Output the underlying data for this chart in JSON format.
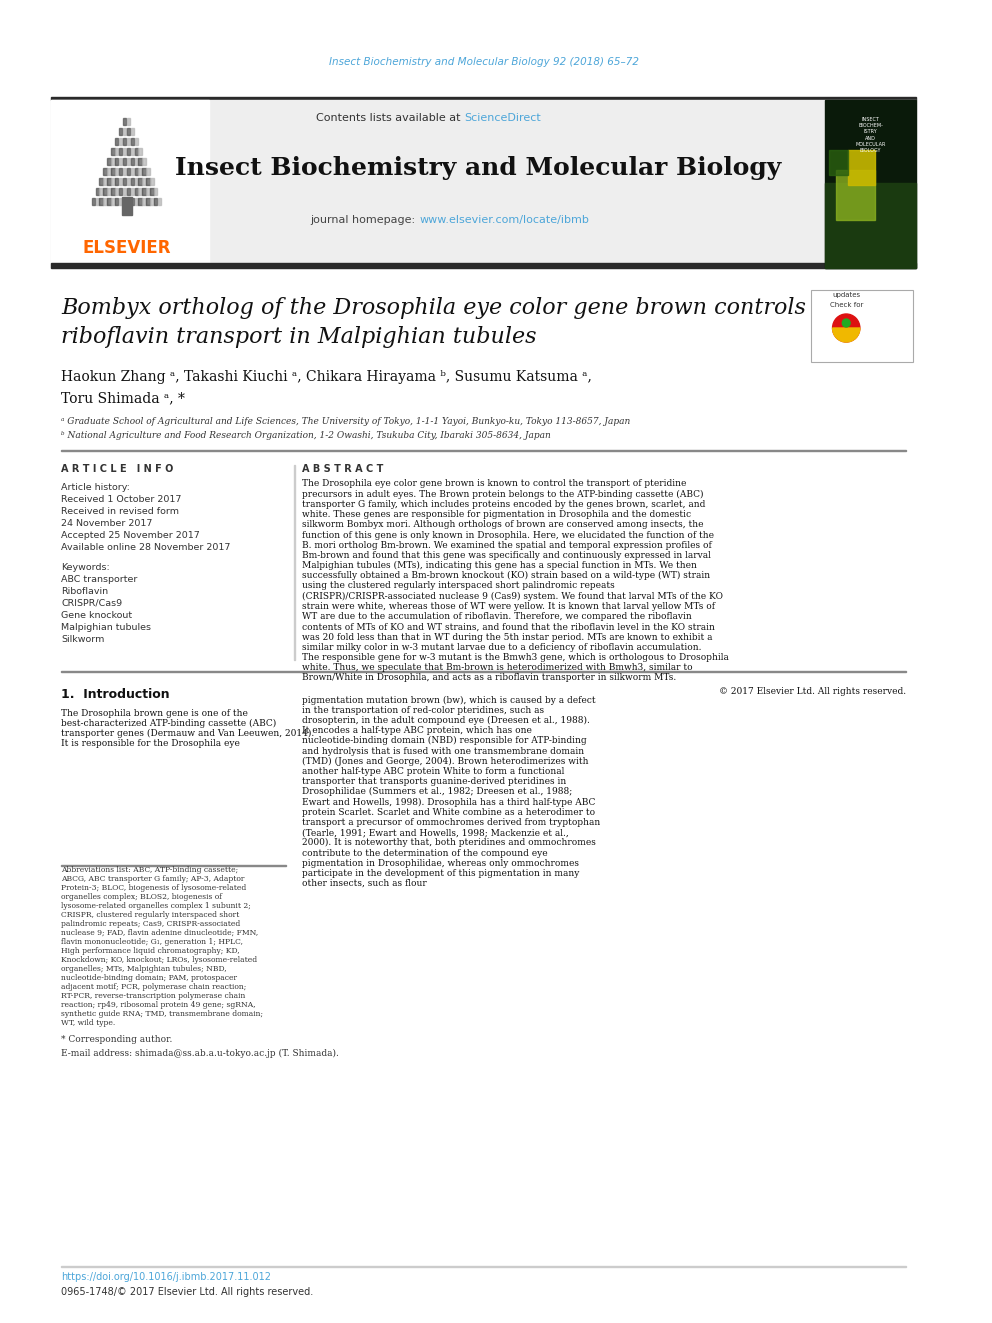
{
  "page_title_line": "Insect Biochemistry and Molecular Biology 92 (2018) 65–72",
  "journal_name": "Insect Biochemistry and Molecular Biology",
  "contents_line": "Contents lists available at ScienceDirect",
  "elsevier_text": "ELSEVIER",
  "paper_title_line1": "Bombyx ortholog of the Drosophila eye color gene brown controls",
  "paper_title_line2": "riboflavin transport in Malpighian tubules",
  "authors": "Haokun Zhang ᵃ, Takashi Kiuchi ᵃ, Chikara Hirayama ᵇ, Susumu Katsuma ᵃ,",
  "authors2": "Toru Shimada ᵃ, *",
  "affil_a": "ᵃ Graduate School of Agricultural and Life Sciences, The University of Tokyo, 1-1-1 Yayoi, Bunkyo-ku, Tokyo 113-8657, Japan",
  "affil_b": "ᵇ National Agriculture and Food Research Organization, 1-2 Owashi, Tsukuba City, Ibaraki 305-8634, Japan",
  "article_info_header": "A R T I C L E   I N F O",
  "article_history_header": "Article history:",
  "received": "Received 1 October 2017",
  "received_revised": "Received in revised form",
  "received_revised2": "24 November 2017",
  "accepted": "Accepted 25 November 2017",
  "available": "Available online 28 November 2017",
  "keywords_header": "Keywords:",
  "keywords": [
    "ABC transporter",
    "Riboflavin",
    "CRISPR/Cas9",
    "Gene knockout",
    "Malpighian tubules",
    "Silkworm"
  ],
  "abstract_header": "A B S T R A C T",
  "abstract_text": "The Drosophila eye color gene brown is known to control the transport of pteridine precursors in adult eyes. The Brown protein belongs to the ATP-binding cassette (ABC) transporter G family, which includes proteins encoded by the genes brown, scarlet, and white. These genes are responsible for pigmentation in Drosophila and the domestic silkworm Bombyx mori. Although orthologs of brown are conserved among insects, the function of this gene is only known in Drosophila. Here, we elucidated the function of the B. mori ortholog Bm-brown. We examined the spatial and temporal expression profiles of Bm-brown and found that this gene was specifically and continuously expressed in larval Malpighian tubules (MTs), indicating this gene has a special function in MTs. We then successfully obtained a Bm-brown knockout (KO) strain based on a wild-type (WT) strain using the clustered regularly interspaced short palindromic repeats (CRISPR)/CRISPR-associated nuclease 9 (Cas9) system. We found that larval MTs of the KO strain were white, whereas those of WT were yellow. It is known that larval yellow MTs of WT are due to the accumulation of riboflavin. Therefore, we compared the riboflavin contents of MTs of KO and WT strains, and found that the riboflavin level in the KO strain was 20 fold less than that in WT during the 5th instar period. MTs are known to exhibit a similar milky color in w-3 mutant larvae due to a deficiency of riboflavin accumulation. The responsible gene for w-3 mutant is the Bmwh3 gene, which is orthologous to Drosophila white. Thus, we speculate that Bm-brown is heterodimerized with Bmwh3, similar to Brown/White in Drosophila, and acts as a riboflavin transporter in silkworm MTs.",
  "copyright": "© 2017 Elsevier Ltd. All rights reserved.",
  "intro_header": "1.  Introduction",
  "intro_indent": "      The Drosophila brown gene is one of the best-characterized ATP-binding cassette (ABC) transporter genes (Dermauw and Van Leeuwen, 2014). It is responsible for the Drosophila eye",
  "intro_text_left": "The Drosophila brown gene is one of the best-characterized ATP-binding cassette (ABC) transporter genes (Dermauw and Van Leeuwen, 2014). It is responsible for the Drosophila eye",
  "intro_text_right": "pigmentation mutation brown (bw), which is caused by a defect in the transportation of red-color pteridines, such as drosopterin, in the adult compound eye (Dreesen et al., 1988). It encodes a half-type ABC protein, which has one nucleotide-binding domain (NBD) responsible for ATP-binding and hydrolysis that is fused with one transmembrane domain (TMD) (Jones and George, 2004). Brown heterodimerizes with another half-type ABC protein White to form a functional transporter that transports guanine-derived pteridines in Drosophilidae (Summers et al., 1982; Dreesen et al., 1988; Ewart and Howells, 1998). Drosophila has a third half-type ABC protein Scarlet. Scarlet and White combine as a heterodimer to transport a precursor of ommochromes derived from tryptophan (Tearle, 1991; Ewart and Howells, 1998; Mackenzie et al., 2000). It is noteworthy that, both pteridines and ommochromes contribute to the determination of the compound eye pigmentation in Drosophilidae, whereas only ommochromes participate in the development of this pigmentation in many other insects, such as flour",
  "abbreviations_text": "Abbreviations list: ABC, ATP-binding cassette; ABCG, ABC transporter G family; AP-3, Adaptor Protein-3; BLOC, biogenesis of lysosome-related organelles complex; BLOS2, biogenesis of lysosome-related organelles complex 1 subunit 2; CRISPR, clustered regularly interspaced short palindromic repeats; Cas9, CRISPR-associated nuclease 9; FAD, flavin adenine dinucleotide; FMN, flavin mononucleotide; G₁, generation 1; HPLC, High performance liquid chromatography; KD, Knockdown; KO, knockout; LROs, lysosome-related organelles; MTs, Malpighian tubules; NBD, nucleotide-binding domain; PAM, protospacer adjacent motif; PCR, polymerase chain reaction; RT-PCR, reverse-transcription polymerase chain reaction; rp49, ribosomal protein 49 gene; sgRNA, synthetic guide RNA; TMD, transmembrane domain; WT, wild type.",
  "corresponding_note": "* Corresponding author.",
  "email_note": "E-mail address: shimada@ss.ab.a.u-tokyo.ac.jp (T. Shimada).",
  "doi": "https://doi.org/10.1016/j.ibmb.2017.11.012",
  "issn": "0965-1748/© 2017 Elsevier Ltd. All rights reserved.",
  "bg_color": "#ffffff",
  "header_bg": "#eeeeee",
  "link_color": "#4da6d9",
  "elsevier_color": "#ff6600",
  "title_color": "#000000",
  "body_color": "#000000",
  "header_bar_color": "#2a2a2a"
}
